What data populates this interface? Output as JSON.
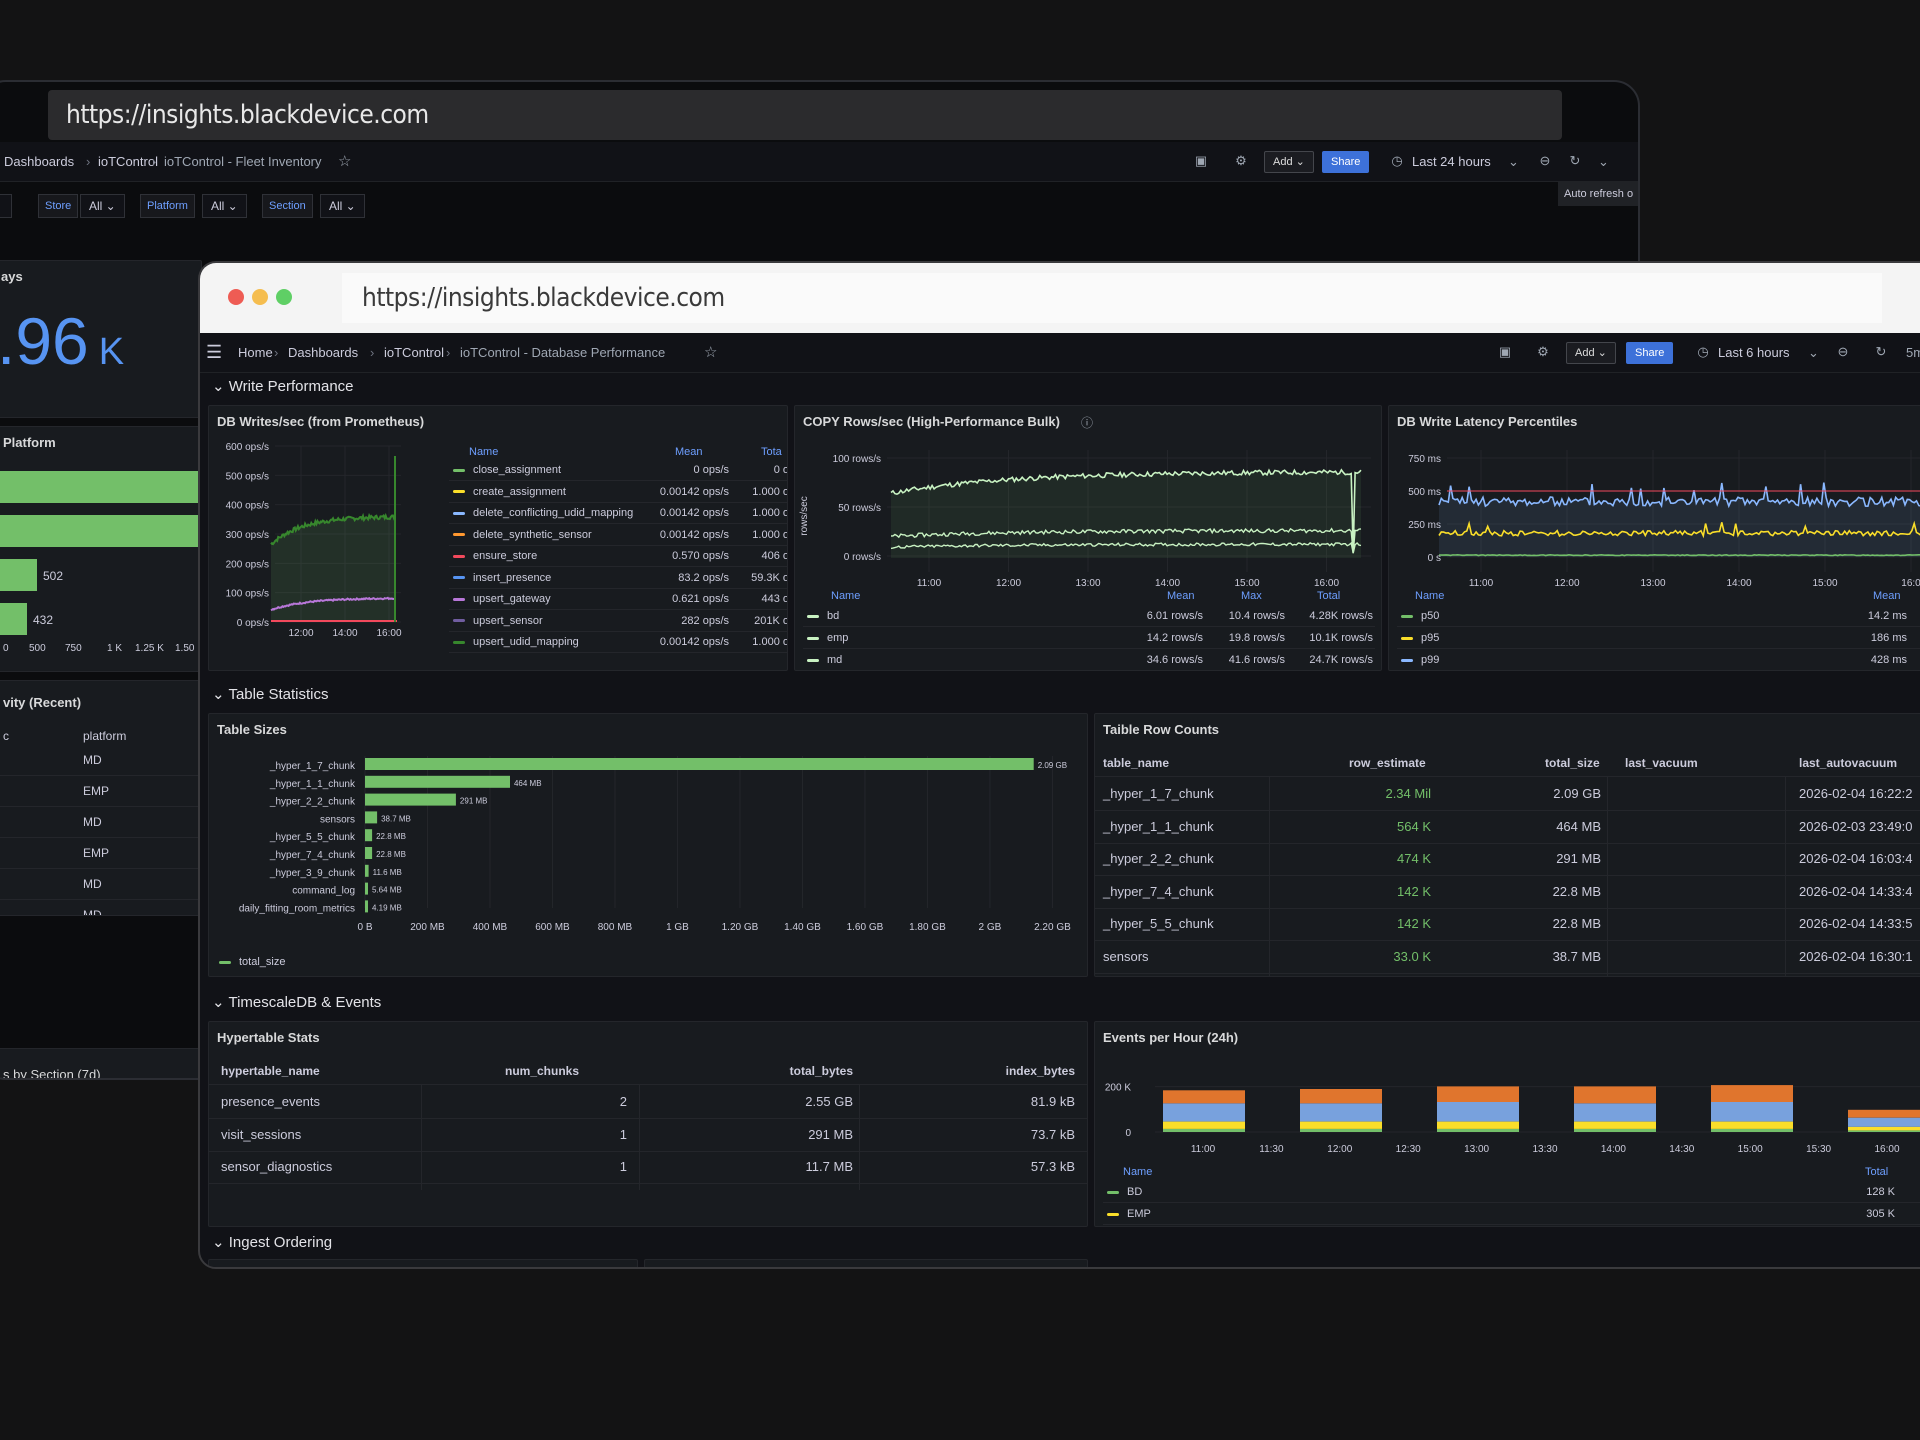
{
  "back_window": {
    "url": "https://insights.blackdevice.com",
    "breadcrumb": [
      "Dashboards",
      "ioTControl",
      "ioTControl - Fleet Inventory"
    ],
    "toolbar": {
      "add": "Add",
      "share": "Share",
      "time_range": "Last 24 hours",
      "tooltip": "Auto refresh o"
    },
    "variables": [
      {
        "label": "Store",
        "value": "All"
      },
      {
        "label": "Platform",
        "value": "All"
      },
      {
        "label": "Section",
        "value": "All"
      }
    ],
    "stat_panel": {
      "title": "ays",
      "value": ".96",
      "unit": "K"
    },
    "platform_panel": {
      "title": "Platform",
      "labels": [
        "502",
        "432"
      ],
      "ticks": [
        "0",
        "500",
        "750",
        "1 K",
        "1.25 K",
        "1.50"
      ]
    },
    "activity_panel": {
      "title": "vity (Recent)",
      "col_a": "c",
      "col_b": "platform",
      "rows": [
        "MD",
        "EMP",
        "MD",
        "EMP",
        "MD",
        "MD"
      ]
    },
    "section_panel": {
      "title": "s by Section (7d)"
    }
  },
  "front_window": {
    "url": "https://insights.blackdevice.com",
    "breadcrumb": [
      "Home",
      "Dashboards",
      "ioTControl",
      "ioTControl - Database Performance"
    ],
    "toolbar": {
      "add": "Add",
      "share": "Share",
      "time_range": "Last 6 hours",
      "refresh": "5m"
    },
    "rows": {
      "write": "Write Performance",
      "table_stats": "Table Statistics",
      "timescale": "TimescaleDB & Events",
      "ingest": "Ingest Ordering"
    },
    "db_writes": {
      "title": "DB Writes/sec (from Prometheus)",
      "legend_headers": {
        "name": "Name",
        "mean": "Mean",
        "total": "Tota"
      },
      "series": [
        {
          "name": "close_assignment",
          "mean": "0 ops/s",
          "total": "0 o",
          "color": "#73bf69"
        },
        {
          "name": "create_assignment",
          "mean": "0.00142 ops/s",
          "total": "1.000 o",
          "color": "#fade2a"
        },
        {
          "name": "delete_conflicting_udid_mapping",
          "mean": "0.00142 ops/s",
          "total": "1.000 o",
          "color": "#8ab8ff"
        },
        {
          "name": "delete_synthetic_sensor",
          "mean": "0.00142 ops/s",
          "total": "1.000 o",
          "color": "#ff9830"
        },
        {
          "name": "ensure_store",
          "mean": "0.570 ops/s",
          "total": "406 o",
          "color": "#f2495c"
        },
        {
          "name": "insert_presence",
          "mean": "83.2 ops/s",
          "total": "59.3K o",
          "color": "#5794f2"
        },
        {
          "name": "upsert_gateway",
          "mean": "0.621 ops/s",
          "total": "443 o",
          "color": "#b877d9"
        },
        {
          "name": "upsert_sensor",
          "mean": "282 ops/s",
          "total": "201K o",
          "color": "#705da0"
        },
        {
          "name": "upsert_udid_mapping",
          "mean": "0.00142 ops/s",
          "total": "1.000 o",
          "color": "#37872d"
        }
      ],
      "y_ticks": [
        "600 ops/s",
        "500 ops/s",
        "400 ops/s",
        "300 ops/s",
        "200 ops/s",
        "100 ops/s",
        "0 ops/s"
      ],
      "x_ticks": [
        "12:00",
        "14:00",
        "16:00"
      ]
    },
    "copy_rows": {
      "title": "COPY Rows/sec (High-Performance Bulk)",
      "ylabel": "rows/sec",
      "y_ticks": [
        "100 rows/s",
        "50 rows/s",
        "0 rows/s"
      ],
      "x_ticks": [
        "11:00",
        "12:00",
        "13:00",
        "14:00",
        "15:00",
        "16:00"
      ],
      "legend_headers": {
        "name": "Name",
        "mean": "Mean",
        "max": "Max",
        "total": "Total"
      },
      "series": [
        {
          "name": "bd",
          "mean": "6.01 rows/s",
          "max": "10.4 rows/s",
          "total": "4.28K rows/s"
        },
        {
          "name": "emp",
          "mean": "14.2 rows/s",
          "max": "19.8 rows/s",
          "total": "10.1K rows/s"
        },
        {
          "name": "md",
          "mean": "34.6 rows/s",
          "max": "41.6 rows/s",
          "total": "24.7K rows/s"
        }
      ]
    },
    "latency": {
      "title": "DB Write Latency Percentiles",
      "y_ticks": [
        "750 ms",
        "500 ms",
        "250 ms",
        "0 s"
      ],
      "x_ticks": [
        "11:00",
        "12:00",
        "13:00",
        "14:00",
        "15:00",
        "16:0"
      ],
      "legend_headers": {
        "name": "Name",
        "mean": "Mean"
      },
      "series": [
        {
          "name": "p50",
          "mean": "14.2 ms",
          "color": "#73bf69"
        },
        {
          "name": "p95",
          "mean": "186 ms",
          "color": "#fade2a"
        },
        {
          "name": "p99",
          "mean": "428 ms",
          "color": "#8ab8ff"
        }
      ]
    },
    "table_sizes": {
      "title": "Table Sizes",
      "legend": "total_size",
      "x_ticks": [
        "0 B",
        "200 MB",
        "400 MB",
        "600 MB",
        "800 MB",
        "1 GB",
        "1.20 GB",
        "1.40 GB",
        "1.60 GB",
        "1.80 GB",
        "2 GB",
        "2.20 GB"
      ]
    },
    "row_counts": {
      "title": "Taible Row Counts",
      "headers": [
        "table_name",
        "row_estimate",
        "total_size",
        "last_vacuum",
        "last_autovacuum"
      ],
      "rows": [
        [
          "_hyper_1_7_chunk",
          "2.34 Mil",
          "2.09 GB",
          "",
          "2026-02-04 16:22:2"
        ],
        [
          "_hyper_1_1_chunk",
          "564 K",
          "464 MB",
          "",
          "2026-02-03 23:49:0"
        ],
        [
          "_hyper_2_2_chunk",
          "474 K",
          "291 MB",
          "",
          "2026-02-04 16:03:4"
        ],
        [
          "_hyper_7_4_chunk",
          "142 K",
          "22.8 MB",
          "",
          "2026-02-04 14:33:4"
        ],
        [
          "_hyper_5_5_chunk",
          "142 K",
          "22.8 MB",
          "",
          "2026-02-04 14:33:5"
        ],
        [
          "sensors",
          "33.0 K",
          "38.7 MB",
          "",
          "2026-02-04 16:30:1"
        ]
      ]
    },
    "hypertable": {
      "title": "Hypertable Stats",
      "headers": [
        "hypertable_name",
        "num_chunks",
        "total_bytes",
        "index_bytes"
      ],
      "rows": [
        [
          "presence_events",
          "2",
          "2.55 GB",
          "81.9 kB"
        ],
        [
          "visit_sessions",
          "1",
          "291 MB",
          "73.7 kB"
        ],
        [
          "sensor_diagnostics",
          "1",
          "11.7 MB",
          "57.3 kB"
        ]
      ]
    },
    "events": {
      "title": "Events per Hour (24h)",
      "y_ticks": [
        "200 K",
        "0"
      ],
      "x_ticks": [
        "11:00",
        "11:30",
        "12:00",
        "12:30",
        "13:00",
        "13:30",
        "14:00",
        "14:30",
        "15:00",
        "15:30",
        "16:00"
      ],
      "legend_headers": {
        "name": "Name",
        "total": "Total"
      },
      "series": [
        {
          "name": "BD",
          "total": "128 K",
          "color": "#73bf69"
        },
        {
          "name": "EMP",
          "total": "305 K",
          "color": "#fade2a"
        }
      ]
    }
  },
  "chart_data": [
    {
      "type": "bar",
      "title": "Table Sizes",
      "orientation": "horizontal",
      "unit": "MB",
      "categories": [
        "_hyper_1_7_chunk",
        "_hyper_1_1_chunk",
        "_hyper_2_2_chunk",
        "sensors",
        "_hyper_5_5_chunk",
        "_hyper_7_4_chunk",
        "_hyper_3_9_chunk",
        "command_log",
        "daily_fitting_room_metrics"
      ],
      "values": [
        2140,
        464,
        291,
        38.7,
        22.8,
        22.8,
        11.6,
        5.64,
        4.19
      ],
      "labels": [
        "2.09 GB",
        "464 MB",
        "291 MB",
        "38.7 MB",
        "22.8 MB",
        "22.8 MB",
        "11.6 MB",
        "5.64 MB",
        "4.19 MB"
      ],
      "xlim": [
        0,
        2253
      ]
    },
    {
      "type": "bar",
      "title": "Events per Hour (24h)",
      "stacked": true,
      "categories": [
        "11:00",
        "12:00",
        "13:00",
        "14:00",
        "15:00",
        "16:00"
      ],
      "series": [
        {
          "name": "BD",
          "values": [
            12,
            12,
            12,
            12,
            12,
            6
          ]
        },
        {
          "name": "EMP",
          "values": [
            28,
            28,
            28,
            28,
            28,
            14
          ]
        },
        {
          "name": "",
          "values": [
            70,
            70,
            75,
            70,
            75,
            35
          ]
        },
        {
          "name": "",
          "values": [
            50,
            55,
            60,
            65,
            65,
            30
          ]
        }
      ],
      "ylim": [
        0,
        300
      ]
    }
  ]
}
